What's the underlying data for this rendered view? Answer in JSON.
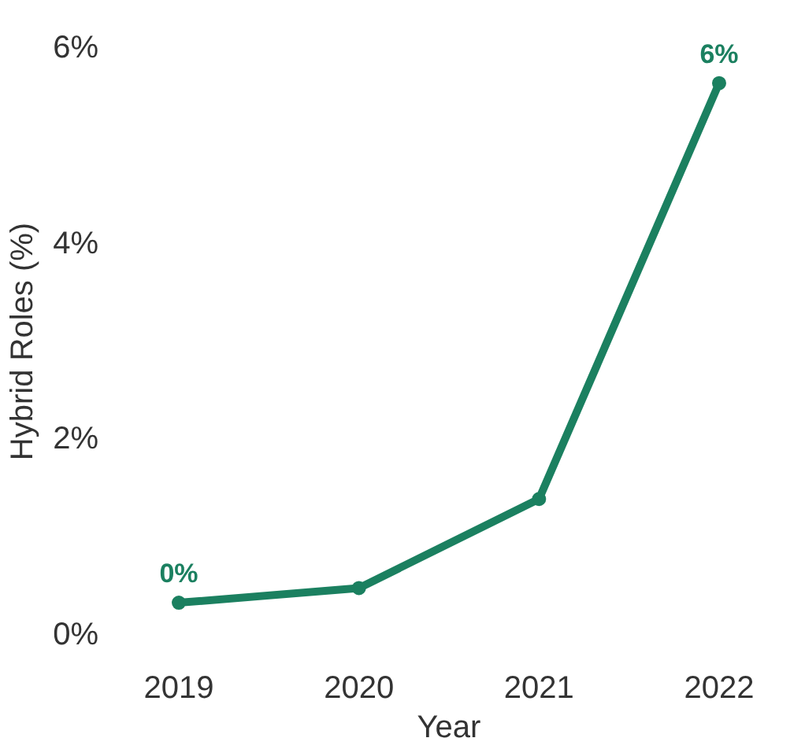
{
  "chart_data": {
    "type": "line",
    "xlabel": "Year",
    "ylabel": "Hybrid Roles (%)",
    "categories": [
      "2019",
      "2020",
      "2021",
      "2022"
    ],
    "values": [
      0.33,
      0.48,
      1.39,
      5.64
    ],
    "value_labels": [
      "0%",
      null,
      null,
      "6%"
    ],
    "color": "#1b8060",
    "marker": "circle",
    "line_style": "solid",
    "grid": false,
    "ylim": [
      0,
      6
    ],
    "yticks": [
      {
        "value": 0,
        "label": "0%"
      },
      {
        "value": 2,
        "label": "2%"
      },
      {
        "value": 4,
        "label": "4%"
      },
      {
        "value": 6,
        "label": "6%"
      }
    ]
  }
}
